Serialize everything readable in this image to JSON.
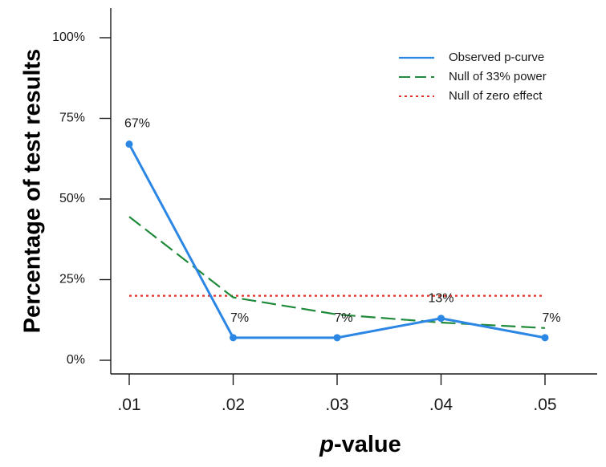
{
  "chart_data": {
    "type": "line",
    "title": "",
    "xlabel": {
      "italic_part": "p",
      "rest": "-value"
    },
    "ylabel": "Percentage of test results",
    "x_categories": [
      ".01",
      ".02",
      ".03",
      ".04",
      ".05"
    ],
    "y_ticks": [
      "0%",
      "25%",
      "50%",
      "75%",
      "100%"
    ],
    "ylim": [
      0,
      100
    ],
    "legend_position": "top-right",
    "series": [
      {
        "name": "Observed p-curve",
        "style": "solid",
        "color": "#2b87e3",
        "values": [
          67,
          7,
          7,
          13,
          7
        ],
        "data_labels": [
          "67%",
          "7%",
          "7%",
          "13%",
          "7%"
        ]
      },
      {
        "name": "Null of 33% power",
        "style": "dashed",
        "color": "#1f8a3a",
        "values": [
          44.5,
          19.5,
          14.2,
          11.7,
          10
        ]
      },
      {
        "name": "Null of zero effect",
        "style": "dotted",
        "color": "#e8302a",
        "values": [
          20,
          20,
          20,
          20,
          20
        ]
      }
    ]
  }
}
